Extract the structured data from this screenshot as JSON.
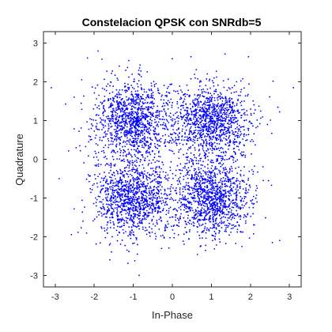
{
  "chart_data": {
    "type": "scatter",
    "title": "Constelacion QPSK con SNRdb=5",
    "xlabel": "In-Phase",
    "ylabel": "Quadrature",
    "xlim": [
      -3.3,
      3.3
    ],
    "ylim": [
      -3.3,
      3.3
    ],
    "x_ticks": [
      -3,
      -2,
      -1,
      0,
      1,
      2,
      3
    ],
    "y_ticks": [
      -3,
      -2,
      -1,
      0,
      1,
      2,
      3
    ],
    "x_tick_labels": [
      "-3",
      "-2",
      "-1",
      "0",
      "1",
      "2",
      "3"
    ],
    "y_tick_labels": [
      "-3",
      "-2",
      "-1",
      "0",
      "1",
      "2",
      "3"
    ],
    "grid": false,
    "legend": "none",
    "marker_color": "#0000ff",
    "constellation_points": [
      {
        "x": -1,
        "y": 1
      },
      {
        "x": 1,
        "y": 1
      },
      {
        "x": -1,
        "y": -1
      },
      {
        "x": 1,
        "y": -1
      }
    ],
    "noise_std": 0.5,
    "points_per_symbol": 1200,
    "outliers": [
      {
        "x": -3.1,
        "y": 1.85
      },
      {
        "x": 3.1,
        "y": 1.85
      },
      {
        "x": -0.85,
        "y": -3.0
      },
      {
        "x": -2.9,
        "y": -0.5
      },
      {
        "x": 0.0,
        "y": 2.6
      },
      {
        "x": 1.95,
        "y": 2.65
      },
      {
        "x": -1.9,
        "y": 2.8
      },
      {
        "x": 2.75,
        "y": -2.1
      },
      {
        "x": -1.6,
        "y": -2.6
      }
    ]
  }
}
